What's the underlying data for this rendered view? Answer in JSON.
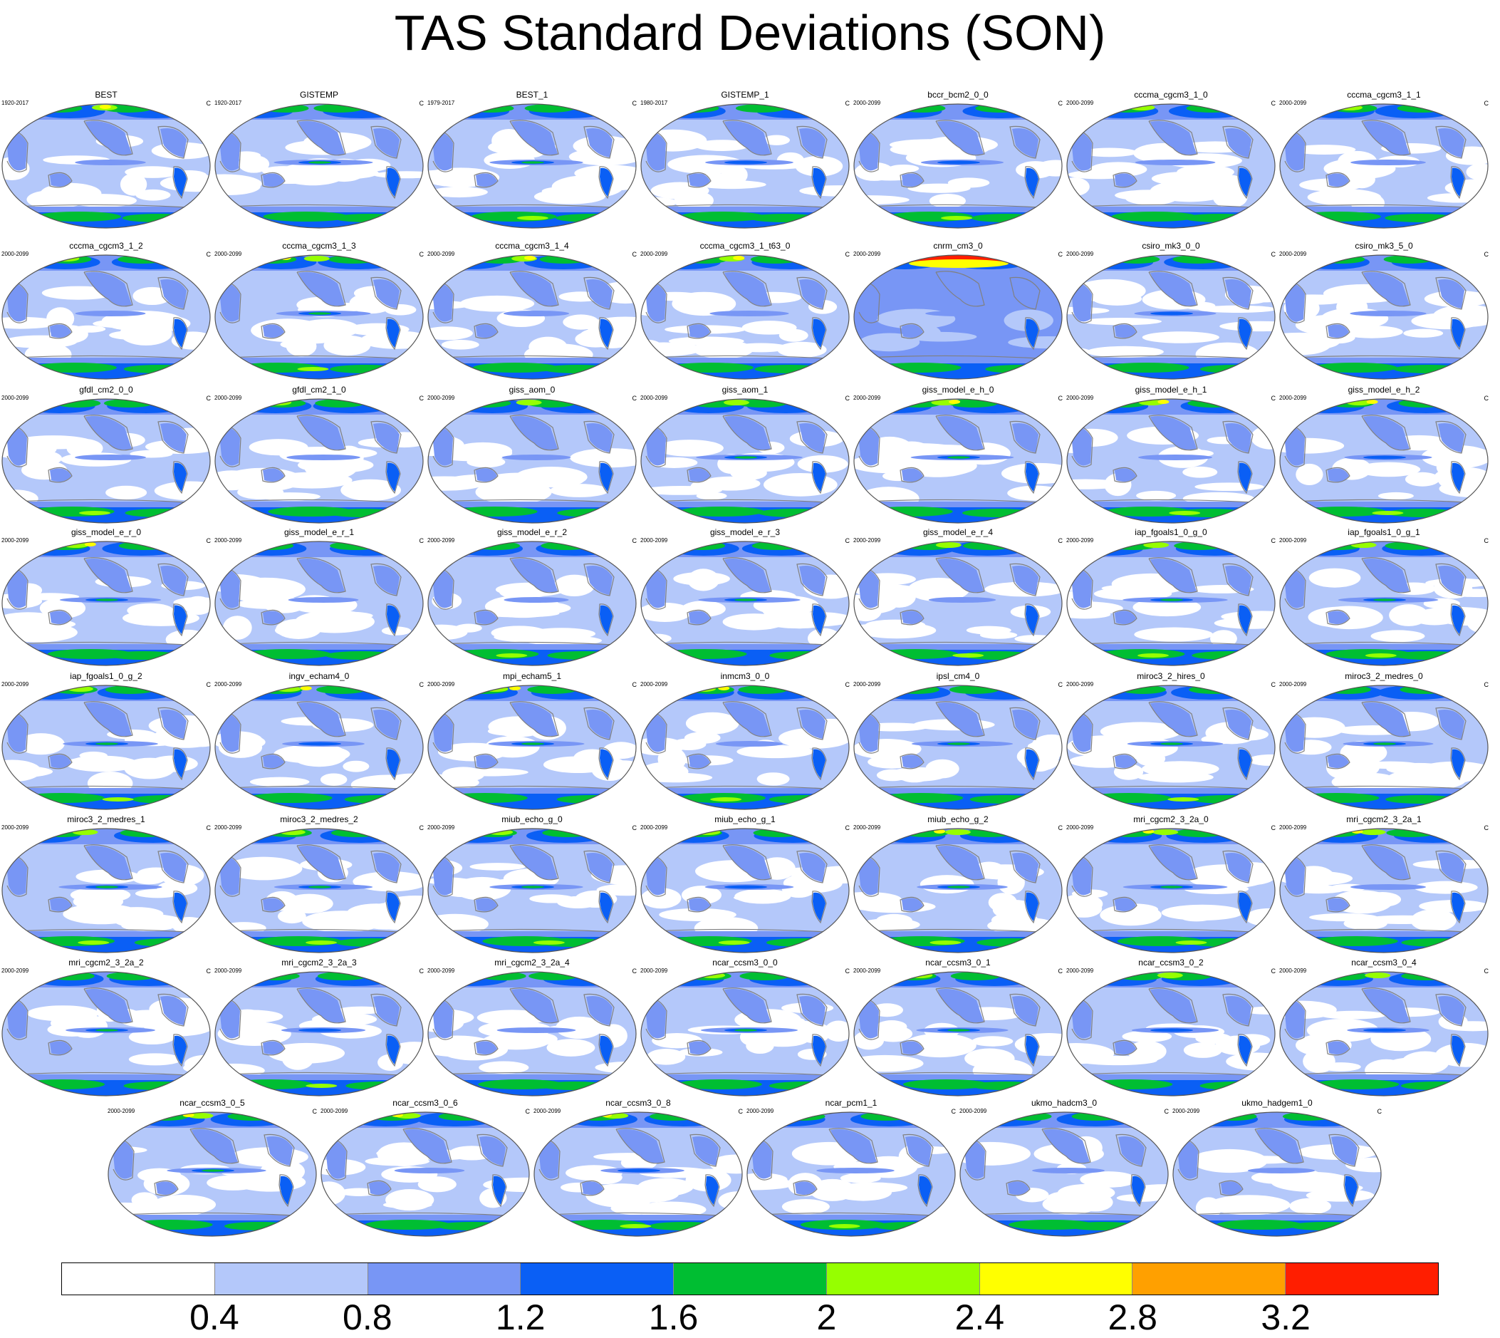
{
  "title": "TAS Standard Deviations (SON)",
  "unit": "C",
  "colorbar": {
    "colors": [
      "#ffffff",
      "#b4c8fa",
      "#7896f5",
      "#0a5ff5",
      "#00be32",
      "#96ff00",
      "#ffff00",
      "#ffa000",
      "#ff1e00"
    ],
    "labels": [
      "0.4",
      "0.8",
      "1.2",
      "1.6",
      "2",
      "2.4",
      "2.8",
      "3.2"
    ]
  },
  "panels": [
    {
      "name": "BEST",
      "years": "1920-2017"
    },
    {
      "name": "GISTEMP",
      "years": "1920-2017"
    },
    {
      "name": "BEST_1",
      "years": "1979-2017"
    },
    {
      "name": "GISTEMP_1",
      "years": "1980-2017"
    },
    {
      "name": "bccr_bcm2_0_0",
      "years": "2000-2099"
    },
    {
      "name": "cccma_cgcm3_1_0",
      "years": "2000-2099"
    },
    {
      "name": "cccma_cgcm3_1_1",
      "years": "2000-2099"
    },
    {
      "name": "cccma_cgcm3_1_2",
      "years": "2000-2099"
    },
    {
      "name": "cccma_cgcm3_1_3",
      "years": "2000-2099"
    },
    {
      "name": "cccma_cgcm3_1_4",
      "years": "2000-2099"
    },
    {
      "name": "cccma_cgcm3_1_t63_0",
      "years": "2000-2099"
    },
    {
      "name": "cnrm_cm3_0",
      "years": "2000-2099"
    },
    {
      "name": "csiro_mk3_0_0",
      "years": "2000-2099"
    },
    {
      "name": "csiro_mk3_5_0",
      "years": "2000-2099"
    },
    {
      "name": "gfdl_cm2_0_0",
      "years": "2000-2099"
    },
    {
      "name": "gfdl_cm2_1_0",
      "years": "2000-2099"
    },
    {
      "name": "giss_aom_0",
      "years": "2000-2099"
    },
    {
      "name": "giss_aom_1",
      "years": "2000-2099"
    },
    {
      "name": "giss_model_e_h_0",
      "years": "2000-2099"
    },
    {
      "name": "giss_model_e_h_1",
      "years": "2000-2099"
    },
    {
      "name": "giss_model_e_h_2",
      "years": "2000-2099"
    },
    {
      "name": "giss_model_e_r_0",
      "years": "2000-2099"
    },
    {
      "name": "giss_model_e_r_1",
      "years": "2000-2099"
    },
    {
      "name": "giss_model_e_r_2",
      "years": "2000-2099"
    },
    {
      "name": "giss_model_e_r_3",
      "years": "2000-2099"
    },
    {
      "name": "giss_model_e_r_4",
      "years": "2000-2099"
    },
    {
      "name": "iap_fgoals1_0_g_0",
      "years": "2000-2099"
    },
    {
      "name": "iap_fgoals1_0_g_1",
      "years": "2000-2099"
    },
    {
      "name": "iap_fgoals1_0_g_2",
      "years": "2000-2099"
    },
    {
      "name": "ingv_echam4_0",
      "years": "2000-2099"
    },
    {
      "name": "mpi_echam5_1",
      "years": "2000-2099"
    },
    {
      "name": "inmcm3_0_0",
      "years": "2000-2099"
    },
    {
      "name": "ipsl_cm4_0",
      "years": "2000-2099"
    },
    {
      "name": "miroc3_2_hires_0",
      "years": "2000-2099"
    },
    {
      "name": "miroc3_2_medres_0",
      "years": "2000-2099"
    },
    {
      "name": "miroc3_2_medres_1",
      "years": "2000-2099"
    },
    {
      "name": "miroc3_2_medres_2",
      "years": "2000-2099"
    },
    {
      "name": "miub_echo_g_0",
      "years": "2000-2099"
    },
    {
      "name": "miub_echo_g_1",
      "years": "2000-2099"
    },
    {
      "name": "miub_echo_g_2",
      "years": "2000-2099"
    },
    {
      "name": "mri_cgcm2_3_2a_0",
      "years": "2000-2099"
    },
    {
      "name": "mri_cgcm2_3_2a_1",
      "years": "2000-2099"
    },
    {
      "name": "mri_cgcm2_3_2a_2",
      "years": "2000-2099"
    },
    {
      "name": "mri_cgcm2_3_2a_3",
      "years": "2000-2099"
    },
    {
      "name": "mri_cgcm2_3_2a_4",
      "years": "2000-2099"
    },
    {
      "name": "ncar_ccsm3_0_0",
      "years": "2000-2099"
    },
    {
      "name": "ncar_ccsm3_0_1",
      "years": "2000-2099"
    },
    {
      "name": "ncar_ccsm3_0_2",
      "years": "2000-2099"
    },
    {
      "name": "ncar_ccsm3_0_4",
      "years": "2000-2099"
    },
    {
      "name": "ncar_ccsm3_0_5",
      "years": "2000-2099"
    },
    {
      "name": "ncar_ccsm3_0_6",
      "years": "2000-2099"
    },
    {
      "name": "ncar_ccsm3_0_8",
      "years": "2000-2099"
    },
    {
      "name": "ncar_pcm1_1",
      "years": "2000-2099"
    },
    {
      "name": "ukmo_hadcm3_0",
      "years": "2000-2099"
    },
    {
      "name": "ukmo_hadgem1_0",
      "years": "2000-2099"
    }
  ]
}
